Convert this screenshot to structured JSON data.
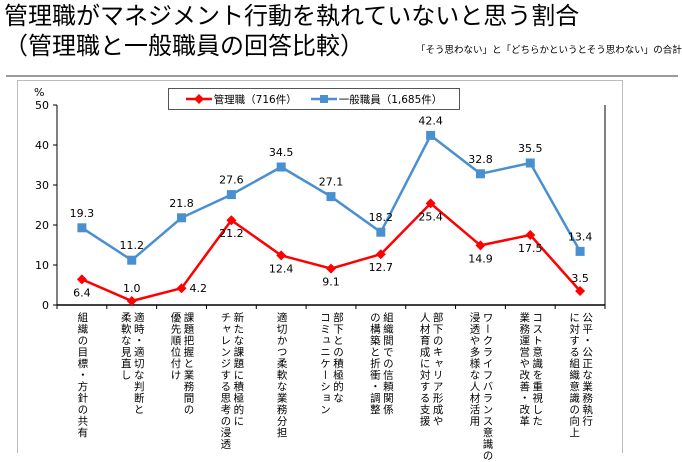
{
  "title_line1": "管理職がマネジメント行動を執れていないと思う割合",
  "title_line2": "（管理職と一般職員の回答比較）",
  "note": "「そう思わない」と「どちらかというとそう思わない」の合計",
  "chart_data": {
    "type": "line",
    "ylabel": "%",
    "ylim": [
      0,
      50
    ],
    "yticks": [
      "0",
      "10",
      "20",
      "30",
      "40",
      "50"
    ],
    "grid": false,
    "legend": "top",
    "categories": [
      "組織の目標・方針の共有",
      "適時・適切な判断と\n柔軟な見直し",
      "課題把握と業務間の\n優先順位付け",
      "新たな課題に積極的に\nチャレンジする思考の浸透",
      "適切かつ柔軟な業務分担",
      "部下との積極的な\nコミュニケーション",
      "組織間での信頼関係\nの構築と折衝・調整",
      "部下のキャリア形成や\n人材育成に対する支援",
      "ワークライフバランス意識の\n浸透や多様な人材活用",
      "コスト意識を重視した\n業務運営や改善・改革",
      "公平・公正な業務執行\nに対する組織意識の向上"
    ],
    "series": [
      {
        "name": "管理職（716件）",
        "color": "#ff0000",
        "marker": "diamond",
        "values": [
          6.4,
          1.0,
          4.2,
          21.2,
          12.4,
          9.1,
          12.7,
          25.4,
          14.9,
          17.5,
          3.5
        ]
      },
      {
        "name": "一般職員（1,685件）",
        "color": "#4a8fd0",
        "marker": "square",
        "values": [
          19.3,
          11.2,
          21.8,
          27.6,
          34.5,
          27.1,
          18.2,
          42.4,
          32.8,
          35.5,
          13.4
        ]
      }
    ]
  }
}
